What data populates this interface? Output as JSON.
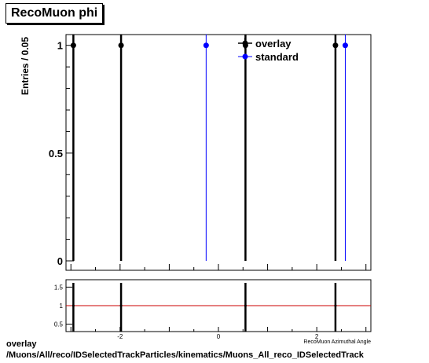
{
  "title": "RecoMuon phi",
  "footer": {
    "line1": "overlay",
    "line2": "/Muons/All/reco/IDSelectedTrackParticles/kinematics/Muons_All_reco_IDSelectedTrack"
  },
  "colors": {
    "overlay": "#000000",
    "standard": "#0000ff",
    "ratio_line": "#cc0000"
  },
  "chart_data": [
    {
      "type": "line",
      "title": "RecoMuon phi",
      "ylabel": "Entries / 0.05",
      "xlabel": "RecoMuon Azimuthal Angle",
      "xlim": [
        -3.1,
        3.1
      ],
      "ylim": [
        0,
        1.05
      ],
      "yticks": [
        "0",
        "0.5",
        "1"
      ],
      "legend_position": "top-right",
      "series": [
        {
          "name": "overlay",
          "x": [
            -2.95,
            -1.98,
            0.55,
            2.38
          ],
          "y": [
            1,
            1,
            1,
            1
          ],
          "color": "#000000"
        },
        {
          "name": "standard",
          "x": [
            -0.25,
            2.58
          ],
          "y": [
            1,
            1
          ],
          "color": "#0000ff"
        }
      ]
    },
    {
      "type": "line",
      "title": "",
      "xlabel": "RecoMuon Azimuthal Angle",
      "ylabel": "",
      "xlim": [
        -3.1,
        3.1
      ],
      "ylim": [
        0.3,
        1.7
      ],
      "xticks": [
        "-2",
        "0",
        "2"
      ],
      "yticks": [
        "0.5",
        "1",
        "1.5"
      ],
      "reference_line": 1,
      "series": [
        {
          "name": "ratio",
          "x": [
            -2.95,
            -1.98,
            0.55,
            2.38
          ],
          "y": [
            1,
            1,
            1,
            1
          ],
          "color": "#000000"
        }
      ]
    }
  ]
}
